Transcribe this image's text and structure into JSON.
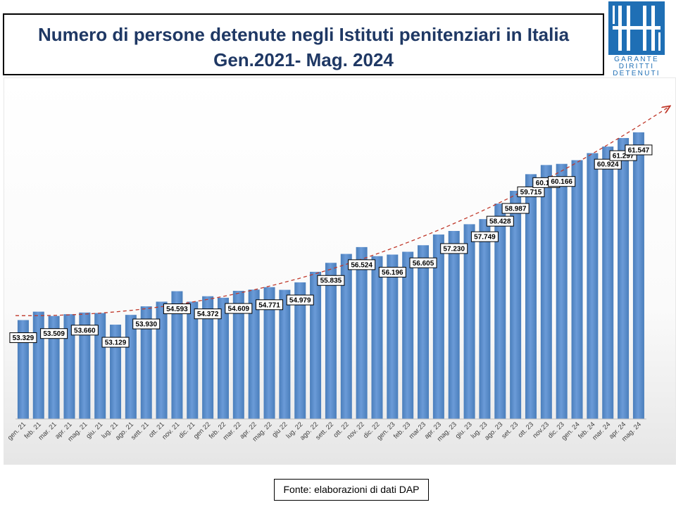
{
  "title": {
    "line1": "Numero di persone detenute negli Istituti penitenziari in Italia",
    "line2": "Gen.2021- Mag. 2024"
  },
  "logo": {
    "line1": "GARANTE",
    "line2": "DIRITTI",
    "line3": "DETENUTI",
    "icon": "logo-h-mark-icon",
    "color": "#1f6fb5"
  },
  "source": "Fonte: elaborazioni di dati DAP",
  "colors": {
    "bar": "#4a7ebb",
    "bar_light": "#6b9bd8",
    "trend": "#c0392b",
    "title": "#1f3864"
  },
  "chart_data": {
    "type": "bar",
    "title": "Numero di persone detenute negli Istituti penitenziari in Italia Gen.2021- Mag. 2024",
    "xlabel": "",
    "ylabel": "",
    "grid": false,
    "legend": "none",
    "ylim": [
      49000,
      62500
    ],
    "categories": [
      "gen. 21",
      "feb. 21",
      "mar. 21",
      "apr. 21",
      "mag. 21",
      "giu. 21",
      "lug. 21",
      "ago. 21",
      "sett. 21",
      "ott. 21",
      "nov. 21",
      "dic. 21",
      "gen 22",
      "feb. 22",
      "mar. 22",
      "apr. 22",
      "mag. 22",
      "giu 22",
      "lug. 22",
      "ago. 22",
      "sett. 22",
      "ott. 22",
      "nov. 22",
      "dic. 22",
      "gen. 23",
      "feb. 23",
      "mar.23",
      "apr. 23",
      "mag. 23",
      "giu. 23",
      "lug. 23",
      "ago. 23",
      "set. 23",
      "ott. 23",
      "nov.23",
      "dic. 23",
      "gen. 24",
      "feb. 24",
      "mar. 24",
      "apr. 24",
      "mag. 24"
    ],
    "values": [
      53329,
      53697,
      53509,
      53587,
      53660,
      53637,
      53129,
      53557,
      53930,
      54134,
      54593,
      54134,
      54372,
      54307,
      54609,
      54662,
      54771,
      54653,
      54979,
      55441,
      55835,
      56225,
      56524,
      56127,
      56196,
      56319,
      56605,
      57074,
      57230,
      57525,
      57749,
      58428,
      58987,
      59715,
      60116,
      60166,
      60328,
      60637,
      60924,
      61297,
      61547
    ],
    "data_labels": [
      {
        "index": 0,
        "text": "53.329"
      },
      {
        "index": 2,
        "text": "53.509"
      },
      {
        "index": 4,
        "text": "53.660"
      },
      {
        "index": 6,
        "text": "53.129"
      },
      {
        "index": 8,
        "text": "53.930"
      },
      {
        "index": 10,
        "text": "54.593"
      },
      {
        "index": 12,
        "text": "54.372"
      },
      {
        "index": 14,
        "text": "54.609"
      },
      {
        "index": 16,
        "text": "54.771"
      },
      {
        "index": 18,
        "text": "54.979"
      },
      {
        "index": 20,
        "text": "55.835"
      },
      {
        "index": 22,
        "text": "56.524"
      },
      {
        "index": 24,
        "text": "56.196"
      },
      {
        "index": 26,
        "text": "56.605"
      },
      {
        "index": 28,
        "text": "57.230"
      },
      {
        "index": 30,
        "text": "57.749"
      },
      {
        "index": 31,
        "text": "58.428"
      },
      {
        "index": 32,
        "text": "58.987"
      },
      {
        "index": 33,
        "text": "59.715"
      },
      {
        "index": 34,
        "text": "60.116"
      },
      {
        "index": 35,
        "text": "60.166"
      },
      {
        "index": 38,
        "text": "60.924"
      },
      {
        "index": 39,
        "text": "61.297"
      },
      {
        "index": 40,
        "text": "61.547"
      }
    ],
    "trendline": {
      "type": "polynomial",
      "style": "dashed",
      "arrow": true
    }
  }
}
